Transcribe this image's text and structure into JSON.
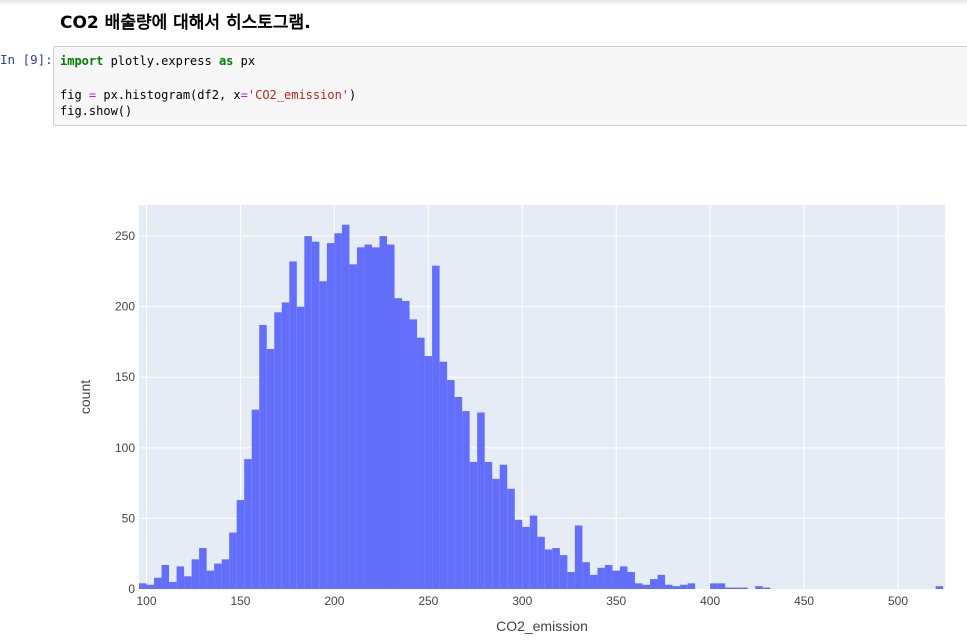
{
  "notebook": {
    "heading": "CO2 배출량에 대해서 히스토그램.",
    "prompt": "In [9]:",
    "code": {
      "line1": {
        "kw1": "import",
        "mid": " plotly.express ",
        "kw2": "as",
        "rest": " px"
      },
      "line3": {
        "a": "fig ",
        "op": "=",
        "b": " px.histogram(df2, x",
        "op2": "=",
        "str": "'CO2_emission'",
        "c": ")"
      },
      "line4": "fig.show()"
    }
  },
  "colors": {
    "bar": "#636efa",
    "plot_bg": "#e5ecf6",
    "grid": "#ffffff",
    "text": "#444444"
  },
  "chart_data": {
    "type": "bar",
    "xlabel": "CO2_emission",
    "ylabel": "count",
    "xlim": [
      96,
      525
    ],
    "ylim": [
      0,
      272
    ],
    "bin_start": 96,
    "bin_width": 4,
    "x_ticks": [
      100,
      150,
      200,
      250,
      300,
      350,
      400,
      450,
      500
    ],
    "y_ticks": [
      0,
      50,
      100,
      150,
      200,
      250
    ],
    "grid": true,
    "values": [
      4,
      3,
      8,
      17,
      5,
      16,
      9,
      21,
      29,
      13,
      18,
      21,
      40,
      63,
      92,
      127,
      187,
      170,
      196,
      203,
      232,
      200,
      250,
      246,
      218,
      245,
      252,
      258,
      230,
      242,
      244,
      242,
      250,
      244,
      206,
      204,
      191,
      178,
      165,
      229,
      161,
      148,
      136,
      126,
      90,
      125,
      90,
      78,
      88,
      71,
      49,
      44,
      52,
      37,
      28,
      29,
      24,
      12,
      45,
      19,
      10,
      15,
      17,
      13,
      16,
      12,
      4,
      3,
      7,
      10,
      3,
      2,
      3,
      4,
      0,
      0,
      4,
      4,
      1,
      1,
      1,
      0,
      2,
      1,
      0,
      0,
      0,
      0,
      0,
      0,
      0,
      0,
      0,
      0,
      0,
      0,
      0,
      0,
      0,
      0,
      0,
      0,
      0,
      0,
      0,
      0,
      2
    ]
  }
}
